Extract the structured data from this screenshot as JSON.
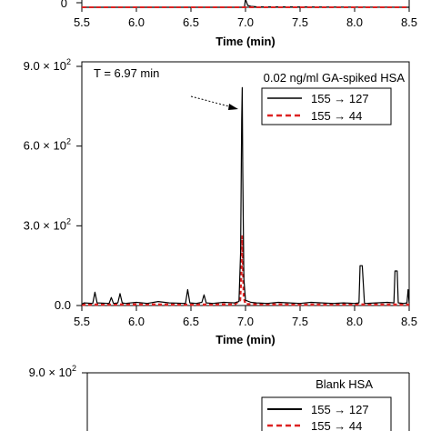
{
  "chart_data": [
    {
      "type": "line",
      "panel": "top (partially visible)",
      "xlabel": "Time (min)",
      "x_ticks": [
        "5.5",
        "6.0",
        "6.5",
        "7.0",
        "7.5",
        "8.0",
        "8.5"
      ],
      "xlim": [
        5.5,
        8.5
      ],
      "y_ticks": [
        "0"
      ],
      "series": [
        {
          "name": "155 → 127",
          "color": "#000000",
          "style": "solid",
          "x": [
            5.5,
            6.99,
            7.0,
            7.02,
            7.05,
            7.1,
            8.5
          ],
          "y": [
            0,
            0,
            90,
            20,
            10,
            5,
            0
          ]
        },
        {
          "name": "155 → 44",
          "color": "#dd2222",
          "style": "dashed",
          "x": [
            5.5,
            8.5
          ],
          "y": [
            0,
            0
          ]
        }
      ]
    },
    {
      "type": "line",
      "panel": "middle",
      "annotation_left": "T = 6.97 min",
      "annotation_right": "0.02 ng/ml GA-spiked HSA",
      "xlabel": "Time (min)",
      "x_ticks": [
        "5.5",
        "6.0",
        "6.5",
        "7.0",
        "7.5",
        "8.0",
        "8.5"
      ],
      "xlim": [
        5.5,
        8.5
      ],
      "y_ticks": [
        {
          "mantissa": "0.0",
          "exp": "",
          "value": 0
        },
        {
          "mantissa": "3.0",
          "exp": "2",
          "value": 300
        },
        {
          "mantissa": "6.0",
          "exp": "2",
          "value": 600
        },
        {
          "mantissa": "9.0",
          "exp": "2",
          "value": 900
        }
      ],
      "ylim": [
        0,
        900
      ],
      "legend_position": "top-right",
      "series": [
        {
          "name": "155 → 127",
          "color": "#000000",
          "style": "solid",
          "x": [
            5.5,
            5.52,
            5.6,
            5.62,
            5.64,
            5.75,
            5.77,
            5.79,
            5.83,
            5.85,
            5.87,
            5.9,
            6.0,
            6.1,
            6.2,
            6.3,
            6.45,
            6.47,
            6.49,
            6.55,
            6.6,
            6.62,
            6.64,
            6.7,
            6.8,
            6.9,
            6.94,
            6.955,
            6.965,
            6.97,
            6.975,
            6.985,
            7.0,
            7.05,
            7.1,
            7.2,
            7.3,
            7.4,
            7.5,
            7.6,
            7.7,
            7.8,
            7.9,
            8.0,
            8.04,
            8.05,
            8.07,
            8.09,
            8.1,
            8.2,
            8.3,
            8.36,
            8.37,
            8.39,
            8.4,
            8.45,
            8.48,
            8.49,
            8.5
          ],
          "y": [
            5,
            10,
            8,
            50,
            10,
            8,
            30,
            8,
            10,
            45,
            10,
            8,
            12,
            8,
            15,
            10,
            8,
            60,
            10,
            8,
            12,
            40,
            10,
            8,
            12,
            10,
            15,
            200,
            700,
            820,
            500,
            100,
            20,
            12,
            10,
            8,
            12,
            10,
            8,
            12,
            10,
            8,
            10,
            8,
            10,
            150,
            150,
            10,
            8,
            10,
            12,
            10,
            130,
            130,
            10,
            8,
            10,
            60,
            10
          ]
        },
        {
          "name": "155 → 44",
          "color": "#dd2222",
          "style": "dashed",
          "x": [
            5.5,
            6.0,
            6.5,
            6.9,
            6.95,
            6.965,
            6.97,
            6.975,
            6.985,
            7.0,
            7.5,
            8.0,
            8.5
          ],
          "y": [
            3,
            4,
            3,
            4,
            20,
            150,
            260,
            180,
            30,
            5,
            3,
            4,
            3
          ]
        }
      ]
    },
    {
      "type": "line",
      "panel": "bottom (partially visible)",
      "annotation_right": "Blank HSA",
      "y_ticks": [
        {
          "mantissa": "9.0",
          "exp": "2",
          "value": 900
        }
      ],
      "legend_position": "top-right",
      "series": [
        {
          "name": "155 → 127",
          "color": "#000000",
          "style": "solid",
          "x": [],
          "y": []
        },
        {
          "name": "155 → 44",
          "color": "#dd2222",
          "style": "dashed",
          "x": [],
          "y": []
        }
      ]
    }
  ]
}
